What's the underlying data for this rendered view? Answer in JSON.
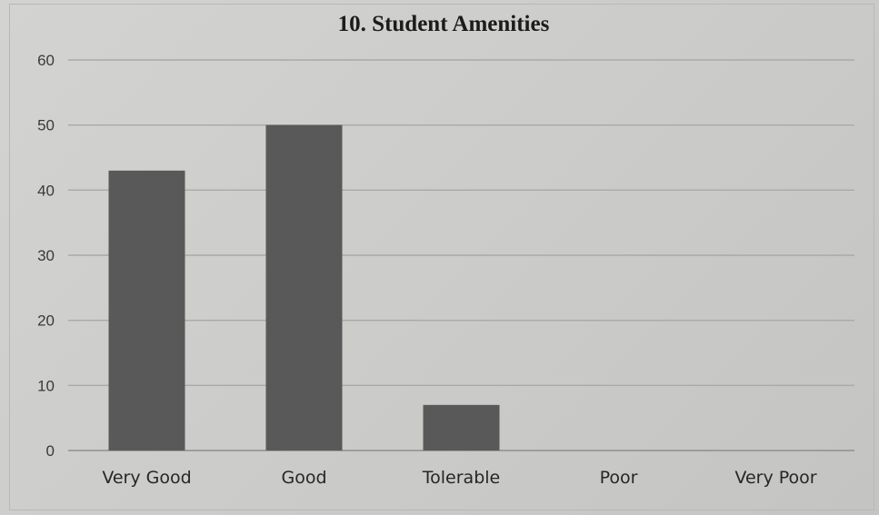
{
  "chart_data": {
    "type": "bar",
    "title": "10. Student Amenities",
    "categories": [
      "Very Good",
      "Good",
      "Tolerable",
      "Poor",
      "Very Poor"
    ],
    "values": [
      43,
      50,
      7,
      0,
      0
    ],
    "ylim": [
      0,
      60
    ],
    "yticks": [
      0,
      10,
      20,
      30,
      40,
      50,
      60
    ],
    "xlabel": "",
    "ylabel": "",
    "grid": true,
    "legend": "none",
    "bar_color": "#595959"
  }
}
